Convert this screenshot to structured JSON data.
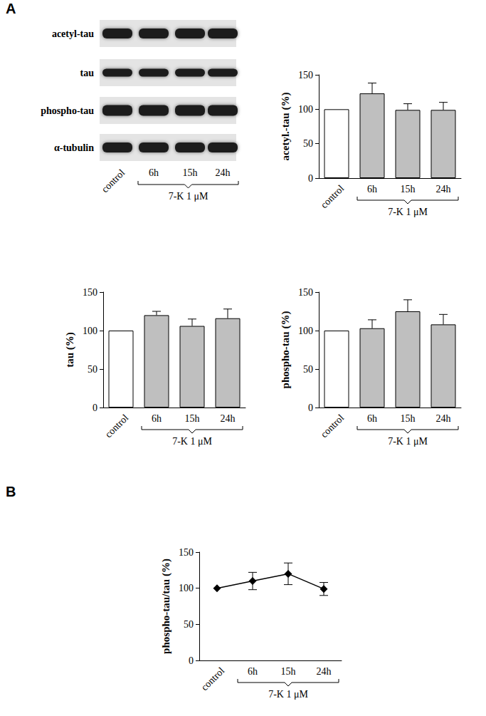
{
  "panels": [
    "A",
    "B"
  ],
  "blot": {
    "rows": [
      "acetyl-tau",
      "tau",
      "phospho-tau",
      "α-tubulin"
    ],
    "lanes": [
      "control",
      "6h",
      "15h",
      "24h"
    ],
    "group_label": "7-K 1 μM"
  },
  "chart_data": [
    {
      "type": "bar",
      "categories": [
        "control",
        "6h",
        "15h",
        "24h"
      ],
      "values": [
        100,
        123,
        99,
        99
      ],
      "errors": [
        null,
        15,
        9,
        11
      ],
      "colors": [
        "#ffffff",
        "#bfbfbf",
        "#bfbfbf",
        "#bfbfbf"
      ],
      "ylabel": "acetyl.-tau (%)",
      "ylim": [
        0,
        150
      ],
      "yticks": [
        0,
        50,
        100,
        150
      ],
      "group_label": "7-K 1 μM",
      "grid": false
    },
    {
      "type": "bar",
      "categories": [
        "control",
        "6h",
        "15h",
        "24h"
      ],
      "values": [
        100,
        120,
        106,
        116
      ],
      "errors": [
        null,
        5,
        9,
        12
      ],
      "colors": [
        "#ffffff",
        "#bfbfbf",
        "#bfbfbf",
        "#bfbfbf"
      ],
      "ylabel": "tau (%)",
      "ylim": [
        0,
        150
      ],
      "yticks": [
        0,
        50,
        100,
        150
      ],
      "group_label": "7-K 1 μM",
      "grid": false
    },
    {
      "type": "bar",
      "categories": [
        "control",
        "6h",
        "15h",
        "24h"
      ],
      "values": [
        100,
        103,
        125,
        108
      ],
      "errors": [
        null,
        11,
        15,
        13
      ],
      "colors": [
        "#ffffff",
        "#bfbfbf",
        "#bfbfbf",
        "#bfbfbf"
      ],
      "ylabel": "phospho-tau (%)",
      "ylim": [
        0,
        150
      ],
      "yticks": [
        0,
        50,
        100,
        150
      ],
      "group_label": "7-K 1 μM",
      "grid": false
    },
    {
      "type": "line",
      "categories": [
        "control",
        "6h",
        "15h",
        "24h"
      ],
      "values": [
        100,
        110,
        120,
        99
      ],
      "errors": [
        null,
        12,
        15,
        9
      ],
      "color": "#000000",
      "marker": "diamond",
      "line_style": "solid",
      "ylabel": "phospho-tau/tau (%)",
      "ylim": [
        0,
        150
      ],
      "yticks": [
        0,
        50,
        100,
        150
      ],
      "group_label": "7-K 1 μM",
      "grid": false
    }
  ]
}
